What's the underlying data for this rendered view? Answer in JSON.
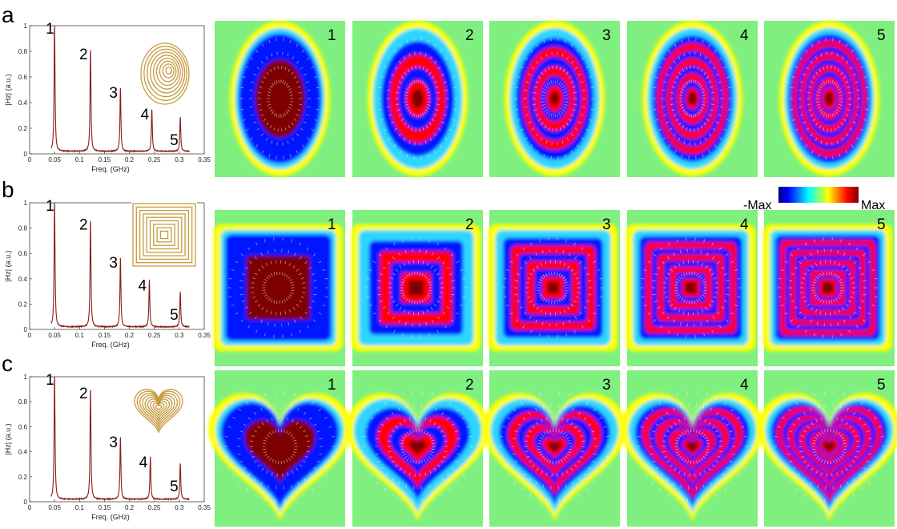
{
  "figure": {
    "colorbar": {
      "min_label": "-Max",
      "max_label": "Max",
      "colors": [
        "#00007f",
        "#0000ff",
        "#00ffff",
        "#ffff00",
        "#ff0000",
        "#7f0000"
      ]
    },
    "field_colors": {
      "background": "#7ff07f",
      "deep": "#7f0000",
      "red": "#ff0000",
      "yellow": "#ffff00",
      "cyan": "#2fd6ff",
      "blue": "#0014ff",
      "arrow": "#ffffff"
    },
    "spectrum_line_color": "#8b1a1a",
    "inset_coil_color": "#c59a3e"
  },
  "chart_data": [
    {
      "panel": "a",
      "type": "line",
      "shape": "ellipse",
      "xlabel": "Freq. (GHz)",
      "ylabel": "|Hz| (a.u.)",
      "xlim": [
        0,
        0.35
      ],
      "ylim": [
        0,
        1
      ],
      "x_ticks": [
        "0",
        "0.05",
        "0.1",
        "0.15",
        "0.2",
        "0.25",
        "0.3",
        "0.35"
      ],
      "y_ticks": [
        "0",
        "0.2",
        "0.4",
        "0.6",
        "0.8",
        "1"
      ],
      "curve_range": [
        0.043,
        0.32
      ],
      "baseline": 0.02,
      "peaks": [
        {
          "label": "1",
          "f": 0.05,
          "amp": 1.0
        },
        {
          "label": "2",
          "f": 0.122,
          "amp": 0.8
        },
        {
          "label": "3",
          "f": 0.182,
          "amp": 0.5
        },
        {
          "label": "4",
          "f": 0.245,
          "amp": 0.33
        },
        {
          "label": "5",
          "f": 0.302,
          "amp": 0.27
        }
      ],
      "mode_labels": [
        "1",
        "2",
        "3",
        "4",
        "5"
      ]
    },
    {
      "panel": "b",
      "type": "line",
      "shape": "square",
      "xlabel": "Freq. (GHz)",
      "ylabel": "|Hz| (a.u.)",
      "xlim": [
        0,
        0.35
      ],
      "ylim": [
        0,
        1
      ],
      "x_ticks": [
        "0",
        "0.05",
        "0.1",
        "0.15",
        "0.2",
        "0.25",
        "0.3",
        "0.35"
      ],
      "y_ticks": [
        "0",
        "0.2",
        "0.4",
        "0.6",
        "0.8",
        "1"
      ],
      "curve_range": [
        0.043,
        0.32
      ],
      "baseline": 0.02,
      "peaks": [
        {
          "label": "1",
          "f": 0.05,
          "amp": 1.0
        },
        {
          "label": "2",
          "f": 0.122,
          "amp": 0.85
        },
        {
          "label": "3",
          "f": 0.182,
          "amp": 0.55
        },
        {
          "label": "4",
          "f": 0.24,
          "amp": 0.37
        },
        {
          "label": "5",
          "f": 0.302,
          "amp": 0.28
        }
      ],
      "mode_labels": [
        "1",
        "2",
        "3",
        "4",
        "5"
      ]
    },
    {
      "panel": "c",
      "type": "line",
      "shape": "heart",
      "xlabel": "Freq. (GHz)",
      "ylabel": "|Hz| (a.u.)",
      "xlim": [
        0,
        0.35
      ],
      "ylim": [
        0,
        1
      ],
      "x_ticks": [
        "0",
        "0.05",
        "0.1",
        "0.15",
        "0.2",
        "0.25",
        "0.3",
        "0.35"
      ],
      "y_ticks": [
        "0",
        "0.2",
        "0.4",
        "0.6",
        "0.8",
        "1"
      ],
      "curve_range": [
        0.043,
        0.32
      ],
      "baseline": 0.02,
      "peaks": [
        {
          "label": "1",
          "f": 0.05,
          "amp": 1.0
        },
        {
          "label": "2",
          "f": 0.122,
          "amp": 0.89
        },
        {
          "label": "3",
          "f": 0.182,
          "amp": 0.5
        },
        {
          "label": "4",
          "f": 0.242,
          "amp": 0.34
        },
        {
          "label": "5",
          "f": 0.302,
          "amp": 0.29
        }
      ],
      "mode_labels": [
        "1",
        "2",
        "3",
        "4",
        "5"
      ]
    }
  ]
}
